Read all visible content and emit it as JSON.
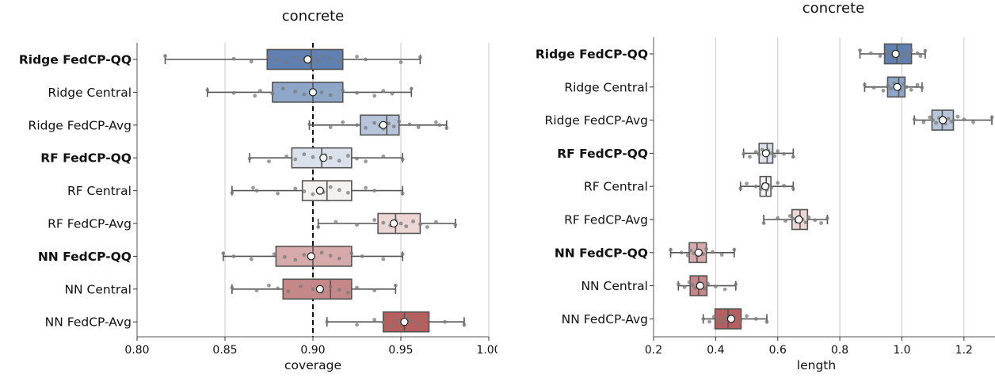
{
  "chart_data": [
    {
      "type": "box",
      "title": "concrete",
      "xlabel": "coverage",
      "ylabel": "",
      "xlim": [
        0.8,
        1.0
      ],
      "xticks": [
        "0.80",
        "0.85",
        "0.90",
        "0.95",
        "1.00"
      ],
      "xtick_values": [
        0.8,
        0.85,
        0.9,
        0.95,
        1.0
      ],
      "grid": "vertical",
      "reference_line": 0.9,
      "categories": [
        "Ridge FedCP-QQ",
        "Ridge Central",
        "Ridge FedCP-Avg",
        "RF FedCP-QQ",
        "RF Central",
        "RF FedCP-Avg",
        "NN FedCP-QQ",
        "NN Central",
        "NN FedCP-Avg"
      ],
      "bold_categories": [
        "Ridge FedCP-QQ",
        "RF FedCP-QQ",
        "NN FedCP-QQ"
      ],
      "colors": [
        "#5f80b0",
        "#8ea6c8",
        "#b7c5da",
        "#dbe1ea",
        "#f4f0ef",
        "#ebd5d5",
        "#d6aaaa",
        "#c48888",
        "#b55f5f"
      ],
      "boxes": [
        {
          "whisker_low": 0.816,
          "q1": 0.874,
          "median": 0.899,
          "q3": 0.917,
          "whisker_high": 0.961,
          "mean": 0.897
        },
        {
          "whisker_low": 0.84,
          "q1": 0.877,
          "median": 0.9,
          "q3": 0.917,
          "whisker_high": 0.956,
          "mean": 0.9
        },
        {
          "whisker_low": 0.898,
          "q1": 0.927,
          "median": 0.942,
          "q3": 0.949,
          "whisker_high": 0.976,
          "mean": 0.94
        },
        {
          "whisker_low": 0.864,
          "q1": 0.888,
          "median": 0.905,
          "q3": 0.922,
          "whisker_high": 0.951,
          "mean": 0.906
        },
        {
          "whisker_low": 0.854,
          "q1": 0.894,
          "median": 0.908,
          "q3": 0.922,
          "whisker_high": 0.951,
          "mean": 0.904
        },
        {
          "whisker_low": 0.903,
          "q1": 0.937,
          "median": 0.947,
          "q3": 0.961,
          "whisker_high": 0.981,
          "mean": 0.946
        },
        {
          "whisker_low": 0.849,
          "q1": 0.879,
          "median": 0.9,
          "q3": 0.922,
          "whisker_high": 0.951,
          "mean": 0.899
        },
        {
          "whisker_low": 0.854,
          "q1": 0.883,
          "median": 0.91,
          "q3": 0.922,
          "whisker_high": 0.947,
          "mean": 0.904
        },
        {
          "whisker_low": 0.908,
          "q1": 0.94,
          "median": 0.952,
          "q3": 0.966,
          "whisker_high": 0.986,
          "mean": 0.952
        }
      ],
      "points": [
        [
          0.816,
          0.855,
          0.865,
          0.875,
          0.88,
          0.885,
          0.89,
          0.893,
          0.897,
          0.9,
          0.903,
          0.906,
          0.91,
          0.915,
          0.925,
          0.93,
          0.95,
          0.961
        ],
        [
          0.84,
          0.855,
          0.867,
          0.87,
          0.877,
          0.883,
          0.89,
          0.895,
          0.9,
          0.905,
          0.91,
          0.917,
          0.925,
          0.935,
          0.94,
          0.945,
          0.956
        ],
        [
          0.898,
          0.91,
          0.917,
          0.925,
          0.93,
          0.935,
          0.938,
          0.94,
          0.943,
          0.946,
          0.949,
          0.955,
          0.96,
          0.97,
          0.972,
          0.976
        ],
        [
          0.864,
          0.875,
          0.885,
          0.89,
          0.895,
          0.9,
          0.905,
          0.907,
          0.91,
          0.915,
          0.92,
          0.925,
          0.93,
          0.94,
          0.951
        ],
        [
          0.854,
          0.866,
          0.868,
          0.88,
          0.89,
          0.895,
          0.9,
          0.904,
          0.906,
          0.91,
          0.915,
          0.92,
          0.93,
          0.935,
          0.951
        ],
        [
          0.903,
          0.913,
          0.925,
          0.935,
          0.94,
          0.944,
          0.947,
          0.95,
          0.953,
          0.957,
          0.961,
          0.965,
          0.97,
          0.981
        ],
        [
          0.849,
          0.855,
          0.865,
          0.878,
          0.884,
          0.89,
          0.895,
          0.9,
          0.905,
          0.91,
          0.915,
          0.922,
          0.928,
          0.94,
          0.951
        ],
        [
          0.854,
          0.868,
          0.875,
          0.88,
          0.886,
          0.893,
          0.9,
          0.905,
          0.91,
          0.915,
          0.92,
          0.925,
          0.935,
          0.947
        ],
        [
          0.908,
          0.925,
          0.935,
          0.94,
          0.945,
          0.948,
          0.95,
          0.953,
          0.956,
          0.96,
          0.965,
          0.975,
          0.986
        ]
      ]
    },
    {
      "type": "box",
      "title": "concrete",
      "xlabel": "length",
      "ylabel": "",
      "xlim": [
        0.2,
        1.3
      ],
      "xticks": [
        "0.2",
        "0.4",
        "0.6",
        "0.8",
        "1.0",
        "1.2"
      ],
      "xtick_values": [
        0.2,
        0.4,
        0.6,
        0.8,
        1.0,
        1.2
      ],
      "grid": "vertical",
      "categories": [
        "Ridge FedCP-QQ",
        "Ridge Central",
        "Ridge FedCP-Avg",
        "RF FedCP-QQ",
        "RF Central",
        "RF FedCP-Avg",
        "NN FedCP-QQ",
        "NN Central",
        "NN FedCP-Avg"
      ],
      "bold_categories": [
        "Ridge FedCP-QQ",
        "RF FedCP-QQ",
        "NN FedCP-QQ"
      ],
      "colors": [
        "#5f80b0",
        "#8ea6c8",
        "#b7c5da",
        "#dbe1ea",
        "#f4f0ef",
        "#ebd5d5",
        "#d6aaaa",
        "#c48888",
        "#b55f5f"
      ],
      "boxes": [
        {
          "whisker_low": 0.865,
          "q1": 0.944,
          "median": 0.984,
          "q3": 1.031,
          "whisker_high": 1.075,
          "mean": 0.98
        },
        {
          "whisker_low": 0.88,
          "q1": 0.954,
          "median": 0.99,
          "q3": 1.01,
          "whisker_high": 1.065,
          "mean": 0.985
        },
        {
          "whisker_low": 1.04,
          "q1": 1.097,
          "median": 1.13,
          "q3": 1.166,
          "whisker_high": 1.29,
          "mean": 1.132
        },
        {
          "whisker_low": 0.49,
          "q1": 0.54,
          "median": 0.566,
          "q3": 0.584,
          "whisker_high": 0.65,
          "mean": 0.562
        },
        {
          "whisker_low": 0.48,
          "q1": 0.543,
          "median": 0.563,
          "q3": 0.578,
          "whisker_high": 0.65,
          "mean": 0.56
        },
        {
          "whisker_low": 0.555,
          "q1": 0.646,
          "median": 0.672,
          "q3": 0.696,
          "whisker_high": 0.76,
          "mean": 0.668
        },
        {
          "whisker_low": 0.255,
          "q1": 0.315,
          "median": 0.34,
          "q3": 0.37,
          "whisker_high": 0.46,
          "mean": 0.345
        },
        {
          "whisker_low": 0.28,
          "q1": 0.318,
          "median": 0.345,
          "q3": 0.372,
          "whisker_high": 0.465,
          "mean": 0.35
        },
        {
          "whisker_low": 0.36,
          "q1": 0.398,
          "median": 0.44,
          "q3": 0.482,
          "whisker_high": 0.565,
          "mean": 0.45
        }
      ],
      "points": [
        [
          0.865,
          0.9,
          0.93,
          0.95,
          0.96,
          0.97,
          0.98,
          0.99,
          1.0,
          1.01,
          1.02,
          1.03,
          1.05,
          1.06,
          1.075
        ],
        [
          0.88,
          0.91,
          0.94,
          0.955,
          0.965,
          0.975,
          0.985,
          0.995,
          1.005,
          1.015,
          1.03,
          1.05,
          1.065
        ],
        [
          1.04,
          1.07,
          1.09,
          1.1,
          1.11,
          1.12,
          1.13,
          1.14,
          1.15,
          1.16,
          1.18,
          1.2,
          1.23,
          1.29
        ],
        [
          0.49,
          0.51,
          0.53,
          0.54,
          0.55,
          0.56,
          0.565,
          0.57,
          0.58,
          0.59,
          0.6,
          0.62,
          0.65
        ],
        [
          0.48,
          0.5,
          0.53,
          0.545,
          0.555,
          0.56,
          0.565,
          0.57,
          0.58,
          0.6,
          0.62,
          0.65
        ],
        [
          0.555,
          0.6,
          0.625,
          0.64,
          0.65,
          0.66,
          0.67,
          0.68,
          0.69,
          0.7,
          0.72,
          0.74,
          0.76
        ],
        [
          0.255,
          0.29,
          0.31,
          0.32,
          0.33,
          0.34,
          0.35,
          0.36,
          0.37,
          0.39,
          0.42,
          0.46
        ],
        [
          0.28,
          0.3,
          0.315,
          0.325,
          0.335,
          0.345,
          0.355,
          0.365,
          0.375,
          0.4,
          0.43,
          0.465
        ],
        [
          0.36,
          0.38,
          0.395,
          0.41,
          0.42,
          0.43,
          0.44,
          0.45,
          0.46,
          0.48,
          0.5,
          0.53,
          0.565
        ]
      ]
    }
  ]
}
